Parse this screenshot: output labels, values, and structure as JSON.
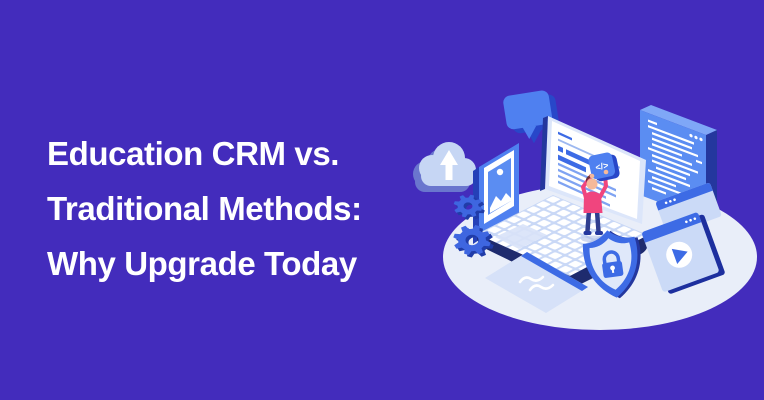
{
  "headline": {
    "line1": "Education CRM vs.",
    "line2": "Traditional Methods:",
    "line3": "Why Upgrade Today"
  },
  "illustration": {
    "code_tile_label": "</>",
    "icons": [
      "speech-bubble-icon",
      "cloud-upload-icon",
      "photo-frame-icon",
      "code-window-icon",
      "laptop-icon",
      "gears-icon",
      "code-badge-icon",
      "shield-lock-icon",
      "video-player-window-icon",
      "braces-card-icon"
    ]
  },
  "colors": {
    "background": "#432CBC",
    "headline_text": "#FFFFFF",
    "ellipse_base": "#E9EEF9",
    "blue_primary": "#4F80F0",
    "blue_strong": "#3D6BE5",
    "blue_dark": "#24379E",
    "navy": "#1E2B6E",
    "light_blue": "#C9D8F6",
    "person_pink": "#F0457E"
  }
}
